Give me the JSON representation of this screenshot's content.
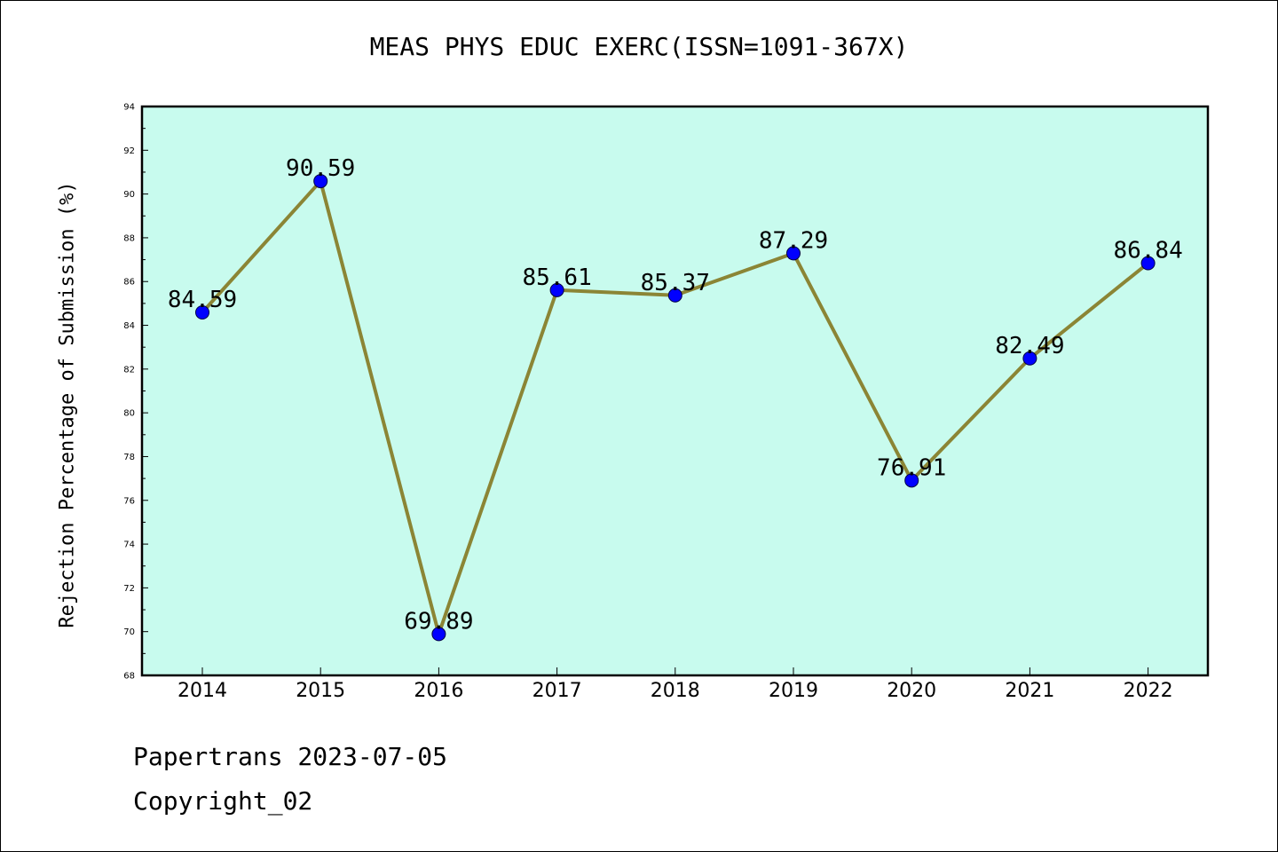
{
  "chart_data": {
    "type": "line",
    "title": "MEAS PHYS EDUC EXERC(ISSN=1091-367X)",
    "xlabel": "",
    "ylabel": "Rejection Percentage of Submission (%)",
    "categories": [
      "2014",
      "2015",
      "2016",
      "2017",
      "2018",
      "2019",
      "2020",
      "2021",
      "2022"
    ],
    "values": [
      84.59,
      90.59,
      69.89,
      85.61,
      85.37,
      87.29,
      76.91,
      82.49,
      86.84
    ],
    "data_labels": [
      "84.59",
      "90.59",
      "69.89",
      "85.61",
      "85.37",
      "87.29",
      "76.91",
      "82.49",
      "86.84"
    ],
    "ylim": [
      68,
      94
    ],
    "yticks": [
      68,
      70,
      72,
      74,
      76,
      78,
      80,
      82,
      84,
      86,
      88,
      90,
      92,
      94
    ],
    "grid": false,
    "colors": {
      "plot_background": "#c8fbee",
      "line": "#8b8535",
      "marker": "#0000ff"
    }
  },
  "footer": {
    "line1": "Papertrans 2023-07-05",
    "line2": "Copyright_02"
  }
}
